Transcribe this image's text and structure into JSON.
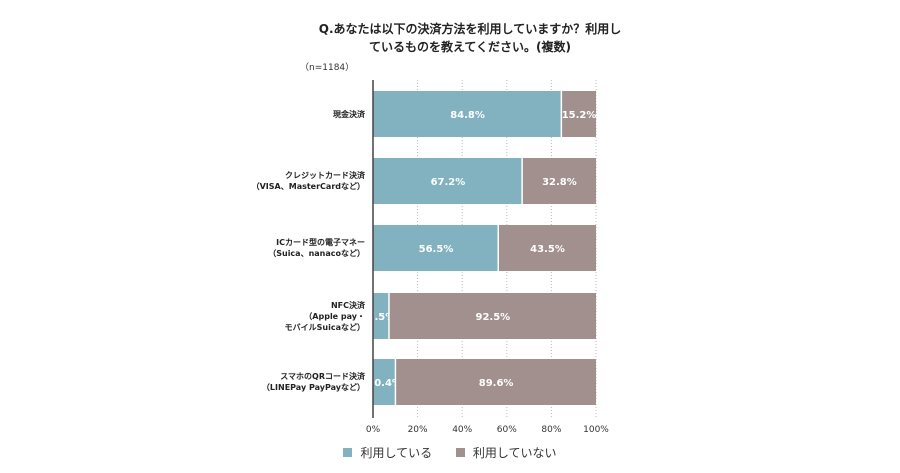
{
  "colors": {
    "used": "#82b1bf",
    "not_used": "#a1908d",
    "axis": "#444444",
    "grid": "#bbbbbb"
  },
  "chart_data": {
    "type": "bar",
    "orientation": "horizontal",
    "stacked": true,
    "title_line1": "Q.あなたは以下の決済方法を利用していますか？利用し",
    "title_line2": "ているものを教えてください。(複数)",
    "subtitle": "（n=1184）",
    "categories": [
      [
        "現金決済"
      ],
      [
        "クレジットカード決済",
        "（VISA、MasterCardなど）"
      ],
      [
        "ICカード型の電子マネー",
        "（Suica、nanacoなど）"
      ],
      [
        "NFC決済",
        "（Apple pay・",
        "モバイルSuicaなど）"
      ],
      [
        "スマホのQRコード決済",
        "（LINEPay PayPayなど）"
      ]
    ],
    "series": [
      {
        "name": "利用している",
        "values": [
          84.8,
          67.2,
          56.5,
          7.5,
          10.4
        ],
        "labels": [
          "84.8%",
          "67.2%",
          "56.5%",
          "7.5%",
          "10.4%"
        ]
      },
      {
        "name": "利用していない",
        "values": [
          15.2,
          32.8,
          43.5,
          92.5,
          89.6
        ],
        "labels": [
          "15.2%",
          "32.8%",
          "43.5%",
          "92.5%",
          "89.6%"
        ]
      }
    ],
    "xlim": [
      0,
      100
    ],
    "xticks": [
      "0%",
      "20%",
      "40%",
      "60%",
      "80%",
      "100%"
    ],
    "grid": "vertical dotted",
    "legend": "bottom-center"
  }
}
